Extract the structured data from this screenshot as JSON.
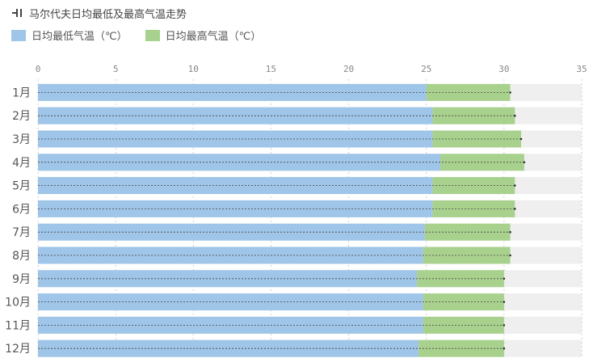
{
  "header": {
    "title": "马尔代夫日均最低及最高气温走势"
  },
  "chart_data": {
    "type": "bar",
    "title": "马尔代夫日均最低及最高气温走势",
    "categories": [
      "1月",
      "2月",
      "3月",
      "4月",
      "5月",
      "6月",
      "7月",
      "8月",
      "9月",
      "10月",
      "11月",
      "12月"
    ],
    "series": [
      {
        "name": "日均最低气温（℃）",
        "color": "#9fc5e8",
        "values": [
          25.0,
          25.4,
          25.4,
          25.9,
          25.4,
          25.4,
          24.9,
          24.8,
          24.4,
          24.8,
          24.8,
          24.5
        ]
      },
      {
        "name": "日均最高气温（℃）",
        "color": "#a9d18e",
        "values": [
          30.4,
          30.7,
          31.1,
          31.3,
          30.7,
          30.7,
          30.4,
          30.4,
          30.0,
          30.0,
          30.0,
          30.0
        ]
      }
    ],
    "xlim": [
      0,
      35
    ],
    "xticks": [
      0,
      5,
      10,
      15,
      20,
      25,
      30,
      35
    ],
    "grid": true,
    "legend_position": "top-left"
  }
}
